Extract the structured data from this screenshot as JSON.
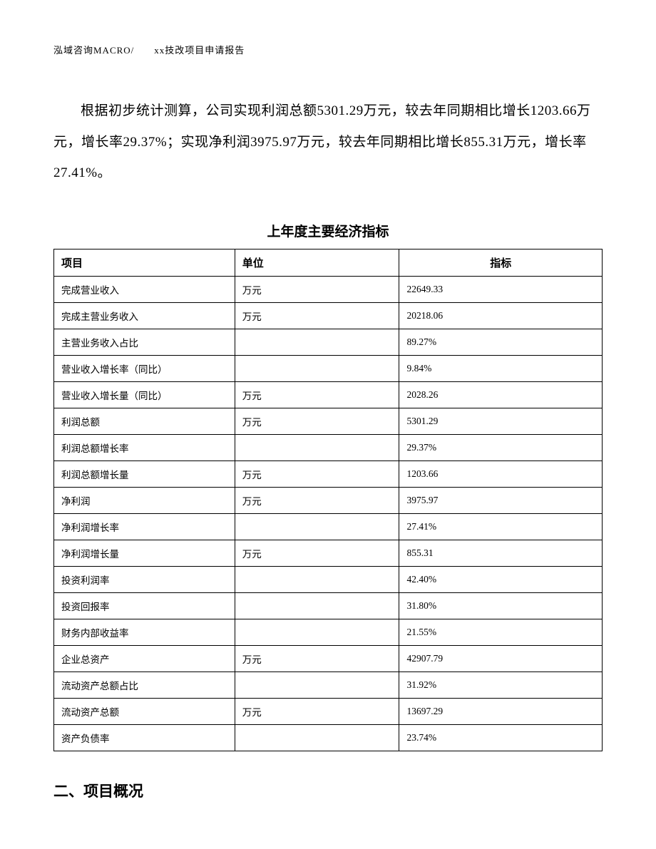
{
  "header": "泓域咨询MACRO/　　xx技改项目申请报告",
  "paragraph": "根据初步统计测算，公司实现利润总额5301.29万元，较去年同期相比增长1203.66万元，增长率29.37%；实现净利润3975.97万元，较去年同期相比增长855.31万元，增长率27.41%。",
  "table": {
    "title": "上年度主要经济指标",
    "columns": [
      "项目",
      "单位",
      "指标"
    ],
    "rows": [
      [
        "完成营业收入",
        "万元",
        "22649.33"
      ],
      [
        "完成主营业务收入",
        "万元",
        "20218.06"
      ],
      [
        "主营业务收入占比",
        "",
        "89.27%"
      ],
      [
        "营业收入增长率（同比）",
        "",
        "9.84%"
      ],
      [
        "营业收入增长量（同比）",
        "万元",
        "2028.26"
      ],
      [
        "利润总额",
        "万元",
        "5301.29"
      ],
      [
        "利润总额增长率",
        "",
        "29.37%"
      ],
      [
        "利润总额增长量",
        "万元",
        "1203.66"
      ],
      [
        "净利润",
        "万元",
        "3975.97"
      ],
      [
        "净利润增长率",
        "",
        "27.41%"
      ],
      [
        "净利润增长量",
        "万元",
        "855.31"
      ],
      [
        "投资利润率",
        "",
        "42.40%"
      ],
      [
        "投资回报率",
        "",
        "31.80%"
      ],
      [
        "财务内部收益率",
        "",
        "21.55%"
      ],
      [
        "企业总资产",
        "万元",
        "42907.79"
      ],
      [
        "流动资产总额占比",
        "",
        "31.92%"
      ],
      [
        "流动资产总额",
        "万元",
        "13697.29"
      ],
      [
        "资产负债率",
        "",
        "23.74%"
      ]
    ]
  },
  "sectionHeading": "二、项目概况"
}
